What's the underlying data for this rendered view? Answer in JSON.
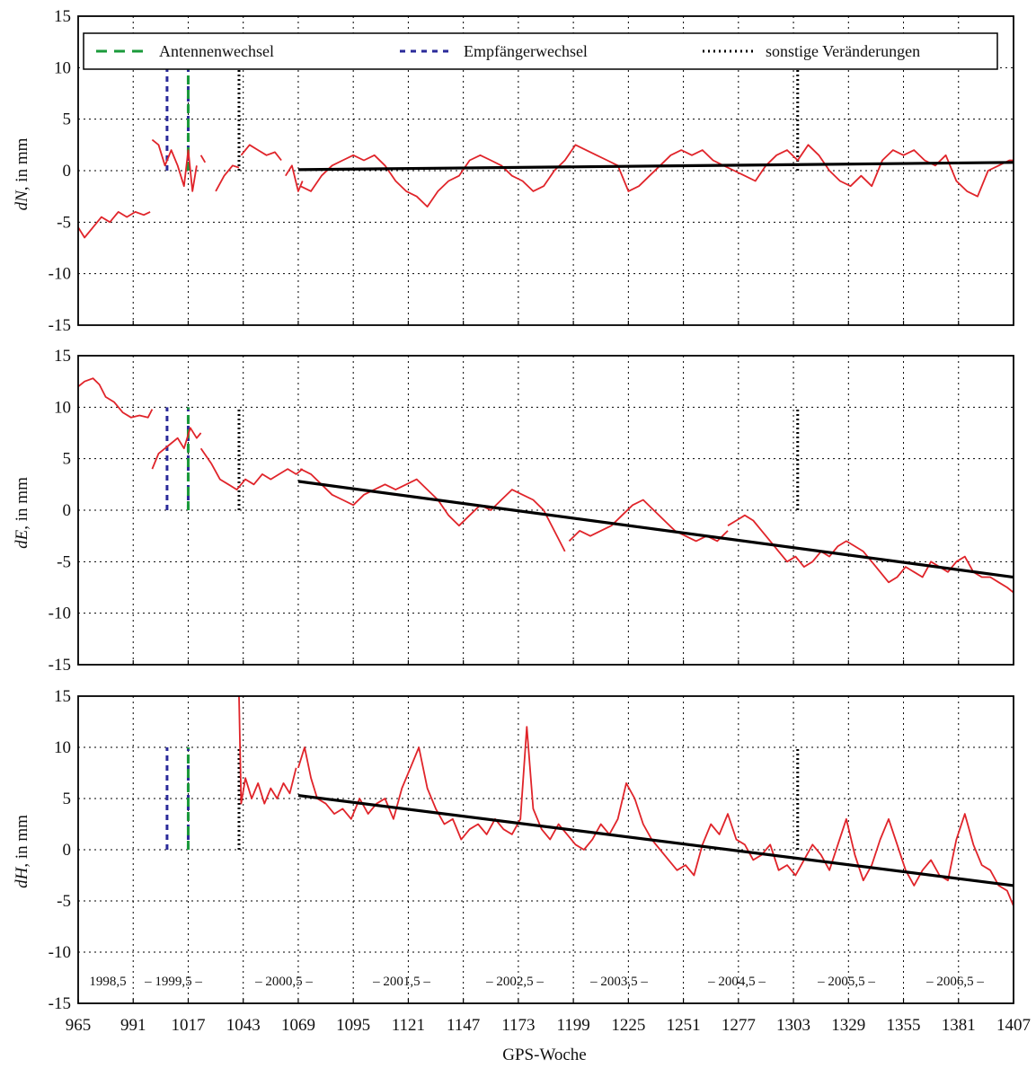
{
  "colors": {
    "series": "#e0242a",
    "trend": "#000000",
    "antenna_change": "#1a9a3a",
    "receiver_change": "#2a2a9a",
    "other_change": "#000000",
    "grid": "#000000"
  },
  "legend": {
    "items": [
      {
        "label": "Antennenwechsel",
        "style": "antenna"
      },
      {
        "label": "Empfängerwechsel",
        "style": "receiver"
      },
      {
        "label": "sonstige Veränderungen",
        "style": "other"
      }
    ]
  },
  "x_axis": {
    "label": "GPS-Woche",
    "ticks": [
      "965",
      "991",
      "1017",
      "1043",
      "1069",
      "1095",
      "1121",
      "1147",
      "1173",
      "1199",
      "1225",
      "1251",
      "1277",
      "1303",
      "1329",
      "1355",
      "1381",
      "1407"
    ]
  },
  "year_labels": [
    "1998,5",
    "– 1999,5 –",
    "– 2000,5 –",
    "– 2001,5 –",
    "– 2002,5 –",
    "– 2003,5 –",
    "– 2004,5 –",
    "– 2005,5 –",
    "– 2006,5 –"
  ],
  "panels": [
    {
      "ylabel_italic": "dN",
      "ylabel_rest": ", in mm"
    },
    {
      "ylabel_italic": "dE",
      "ylabel_rest": ", in mm"
    },
    {
      "ylabel_italic": "dH",
      "ylabel_rest": ", in mm"
    }
  ],
  "chart_data": [
    {
      "type": "line",
      "ylabel": "dN, in mm",
      "xlabel": "GPS-Woche",
      "xlim": [
        965,
        1407
      ],
      "ylim": [
        -15,
        15
      ],
      "yticks": [
        15,
        10,
        5,
        0,
        -5,
        -10,
        -15
      ],
      "legend_placement": "top",
      "grid": true,
      "events": [
        {
          "type": "antenna",
          "x": 1017,
          "y": [
            0,
            10
          ]
        },
        {
          "type": "receiver",
          "x": 1007,
          "y": [
            0,
            10
          ]
        },
        {
          "type": "other",
          "x": 1041,
          "y": [
            0,
            10
          ]
        },
        {
          "type": "other",
          "x": 1305,
          "y": [
            0,
            10
          ]
        }
      ],
      "trend": {
        "x": [
          1069,
          1407
        ],
        "y": [
          0.1,
          0.8
        ]
      },
      "series": [
        {
          "x": [
            965,
            968,
            972,
            976,
            980,
            984,
            988,
            992,
            996,
            999
          ],
          "y": [
            -5.5,
            -6.5,
            -5.5,
            -4.5,
            -5.0,
            -4.0,
            -4.5,
            -4.0,
            -4.3,
            -4.0
          ]
        },
        {
          "x": [
            1000,
            1003,
            1006,
            1009,
            1012,
            1015,
            1017,
            1019,
            1021
          ],
          "y": [
            3.0,
            2.5,
            0.5,
            2.0,
            0.5,
            -1.5,
            2.0,
            -2.0,
            0.5
          ]
        },
        {
          "x": [
            1023,
            1025
          ],
          "y": [
            1.5,
            0.8
          ]
        },
        {
          "x": [
            1030,
            1034,
            1038,
            1041
          ],
          "y": [
            -2.0,
            -0.5,
            0.5,
            0.3
          ]
        },
        {
          "x": [
            1042,
            1046,
            1050,
            1054,
            1058,
            1061
          ],
          "y": [
            1.5,
            2.5,
            2.0,
            1.5,
            1.8,
            1.0
          ]
        },
        {
          "x": [
            1063,
            1066,
            1069,
            1071
          ],
          "y": [
            -0.5,
            0.5,
            -2.0,
            -1.0
          ]
        },
        {
          "x": [
            1070,
            1075,
            1080,
            1085,
            1090,
            1095,
            1100,
            1105,
            1110,
            1115,
            1120,
            1125,
            1130,
            1135,
            1140,
            1145,
            1150,
            1155,
            1160,
            1165,
            1170,
            1175,
            1180,
            1185,
            1190,
            1195,
            1200,
            1205,
            1210,
            1215,
            1220,
            1225,
            1230,
            1235,
            1240,
            1245,
            1250,
            1255,
            1260,
            1265,
            1270,
            1275,
            1280,
            1285,
            1290,
            1295,
            1300,
            1305,
            1310,
            1315,
            1320,
            1325,
            1330,
            1335,
            1340,
            1345,
            1350,
            1355,
            1360,
            1365,
            1370,
            1375,
            1380,
            1385,
            1390,
            1395,
            1400,
            1405,
            1407
          ],
          "y": [
            -1.5,
            -2.0,
            -0.5,
            0.5,
            1.0,
            1.5,
            1.0,
            1.5,
            0.5,
            -1.0,
            -2.0,
            -2.5,
            -3.5,
            -2.0,
            -1.0,
            -0.5,
            1.0,
            1.5,
            1.0,
            0.5,
            -0.5,
            -1.0,
            -2.0,
            -1.5,
            0.0,
            1.0,
            2.5,
            2.0,
            1.5,
            1.0,
            0.5,
            -2.0,
            -1.5,
            -0.5,
            0.5,
            1.5,
            2.0,
            1.5,
            2.0,
            1.0,
            0.5,
            0.0,
            -0.5,
            -1.0,
            0.5,
            1.5,
            2.0,
            1.0,
            2.5,
            1.5,
            0.0,
            -1.0,
            -1.5,
            -0.5,
            -1.5,
            1.0,
            2.0,
            1.5,
            2.0,
            1.0,
            0.5,
            1.5,
            -1.0,
            -2.0,
            -2.5,
            0.0,
            0.5,
            1.0,
            1.0
          ]
        }
      ]
    },
    {
      "type": "line",
      "ylabel": "dE, in mm",
      "xlabel": "GPS-Woche",
      "xlim": [
        965,
        1407
      ],
      "ylim": [
        -15,
        15
      ],
      "yticks": [
        15,
        10,
        5,
        0,
        -5,
        -10,
        -15
      ],
      "grid": true,
      "events": [
        {
          "type": "antenna",
          "x": 1017,
          "y": [
            0,
            10
          ]
        },
        {
          "type": "receiver",
          "x": 1007,
          "y": [
            0,
            10
          ]
        },
        {
          "type": "other",
          "x": 1041,
          "y": [
            0,
            10
          ]
        },
        {
          "type": "other",
          "x": 1305,
          "y": [
            0,
            10
          ]
        }
      ],
      "trend": {
        "x": [
          1069,
          1407
        ],
        "y": [
          2.8,
          -6.5
        ]
      },
      "series": [
        {
          "x": [
            965,
            968,
            972,
            975,
            978,
            982,
            986,
            990,
            994,
            998,
            1000
          ],
          "y": [
            12.0,
            12.5,
            12.8,
            12.2,
            11.0,
            10.5,
            9.5,
            9.0,
            9.2,
            9.0,
            9.8
          ]
        },
        {
          "x": [
            1000,
            1003,
            1006,
            1009,
            1012,
            1015,
            1018,
            1021,
            1023
          ],
          "y": [
            4.0,
            5.5,
            6.0,
            6.5,
            7.0,
            6.0,
            8.0,
            7.0,
            7.5
          ]
        },
        {
          "x": [
            1023,
            1028,
            1032,
            1036,
            1040,
            1044,
            1048,
            1052,
            1056,
            1060,
            1064,
            1068,
            1071
          ],
          "y": [
            6.0,
            4.5,
            3.0,
            2.5,
            2.0,
            3.0,
            2.5,
            3.5,
            3.0,
            3.5,
            4.0,
            3.5,
            4.0
          ]
        },
        {
          "x": [
            1070,
            1075,
            1080,
            1085,
            1090,
            1095,
            1100,
            1105,
            1110,
            1115,
            1120,
            1125,
            1130,
            1135,
            1140,
            1145,
            1150,
            1155,
            1160,
            1165,
            1170,
            1175,
            1180,
            1185,
            1190,
            1195
          ],
          "y": [
            4.0,
            3.5,
            2.5,
            1.5,
            1.0,
            0.5,
            1.5,
            2.0,
            2.5,
            2.0,
            2.5,
            3.0,
            2.0,
            1.0,
            -0.5,
            -1.5,
            -0.5,
            0.5,
            0.0,
            1.0,
            2.0,
            1.5,
            1.0,
            0.0,
            -2.0,
            -4.0
          ]
        },
        {
          "x": [
            1197,
            1202,
            1207,
            1212,
            1217,
            1222,
            1227,
            1232,
            1237,
            1242,
            1247,
            1252,
            1257,
            1262,
            1267,
            1272
          ],
          "y": [
            -3.0,
            -2.0,
            -2.5,
            -2.0,
            -1.5,
            -0.5,
            0.5,
            1.0,
            0.0,
            -1.0,
            -2.0,
            -2.5,
            -3.0,
            -2.5,
            -3.0,
            -2.0
          ]
        },
        {
          "x": [
            1272,
            1276,
            1280,
            1284,
            1288,
            1292,
            1296,
            1300,
            1304,
            1308,
            1312,
            1316,
            1320,
            1324,
            1328,
            1332,
            1336,
            1340,
            1344,
            1348,
            1352,
            1356,
            1360,
            1364,
            1368,
            1372,
            1376,
            1380,
            1384,
            1388,
            1392,
            1396,
            1400,
            1404,
            1407
          ],
          "y": [
            -1.5,
            -1.0,
            -0.5,
            -1.0,
            -2.0,
            -3.0,
            -4.0,
            -5.0,
            -4.5,
            -5.5,
            -5.0,
            -4.0,
            -4.5,
            -3.5,
            -3.0,
            -3.5,
            -4.0,
            -5.0,
            -6.0,
            -7.0,
            -6.5,
            -5.5,
            -6.0,
            -6.5,
            -5.0,
            -5.5,
            -6.0,
            -5.0,
            -4.5,
            -6.0,
            -6.5,
            -6.5,
            -7.0,
            -7.5,
            -8.0
          ]
        }
      ]
    },
    {
      "type": "line",
      "ylabel": "dH, in mm",
      "xlabel": "GPS-Woche",
      "xlim": [
        965,
        1407
      ],
      "ylim": [
        -15,
        15
      ],
      "yticks": [
        15,
        10,
        5,
        0,
        -5,
        -10,
        -15
      ],
      "grid": true,
      "events": [
        {
          "type": "antenna",
          "x": 1017,
          "y": [
            0,
            10
          ]
        },
        {
          "type": "receiver",
          "x": 1007,
          "y": [
            0,
            10
          ]
        },
        {
          "type": "other",
          "x": 1041,
          "y": [
            0,
            10
          ]
        },
        {
          "type": "other",
          "x": 1305,
          "y": [
            0,
            10
          ]
        }
      ],
      "trend": {
        "x": [
          1069,
          1407
        ],
        "y": [
          5.3,
          -3.5
        ]
      },
      "series": [
        {
          "x": [
            1041,
            1042,
            1044,
            1047,
            1050,
            1053,
            1056,
            1059,
            1062,
            1065,
            1068
          ],
          "y": [
            15.0,
            4.5,
            7.0,
            5.0,
            6.5,
            4.5,
            6.0,
            5.0,
            6.5,
            5.5,
            8.0
          ]
        },
        {
          "x": [
            1069,
            1072,
            1075,
            1078,
            1082,
            1086,
            1090,
            1094,
            1098,
            1102,
            1106,
            1110,
            1114,
            1118,
            1122,
            1126,
            1130,
            1134,
            1138,
            1142,
            1146,
            1150,
            1154,
            1158,
            1162,
            1166,
            1170,
            1174,
            1177,
            1180,
            1184,
            1188,
            1192,
            1196,
            1200,
            1204,
            1208,
            1212,
            1216,
            1220,
            1224,
            1228,
            1232,
            1236,
            1240,
            1244,
            1248,
            1252,
            1256,
            1260,
            1264,
            1268,
            1272,
            1276,
            1280,
            1284,
            1288,
            1292,
            1296,
            1300,
            1304,
            1308,
            1312,
            1316,
            1320,
            1324,
            1328,
            1332,
            1336,
            1340,
            1344,
            1348,
            1352,
            1356,
            1360,
            1364,
            1368,
            1372,
            1376,
            1380,
            1384,
            1388,
            1392,
            1396,
            1400,
            1404,
            1407
          ],
          "y": [
            8.0,
            10.0,
            7.0,
            5.0,
            4.5,
            3.5,
            4.0,
            3.0,
            5.0,
            3.5,
            4.5,
            5.0,
            3.0,
            6.0,
            8.0,
            10.0,
            6.0,
            4.0,
            2.5,
            3.0,
            1.0,
            2.0,
            2.5,
            1.5,
            3.0,
            2.0,
            1.5,
            3.0,
            12.0,
            4.0,
            2.0,
            1.0,
            2.5,
            1.5,
            0.5,
            0.0,
            1.0,
            2.5,
            1.5,
            3.0,
            6.5,
            5.0,
            2.5,
            1.0,
            0.0,
            -1.0,
            -2.0,
            -1.5,
            -2.5,
            0.5,
            2.5,
            1.5,
            3.5,
            1.0,
            0.5,
            -1.0,
            -0.5,
            0.5,
            -2.0,
            -1.5,
            -2.5,
            -1.0,
            0.5,
            -0.5,
            -2.0,
            0.5,
            3.0,
            -0.5,
            -3.0,
            -1.5,
            1.0,
            3.0,
            0.5,
            -2.0,
            -3.5,
            -2.0,
            -1.0,
            -2.5,
            -3.0,
            1.0,
            3.5,
            0.5,
            -1.5,
            -2.0,
            -3.5,
            -4.0,
            -5.5
          ]
        }
      ]
    }
  ]
}
